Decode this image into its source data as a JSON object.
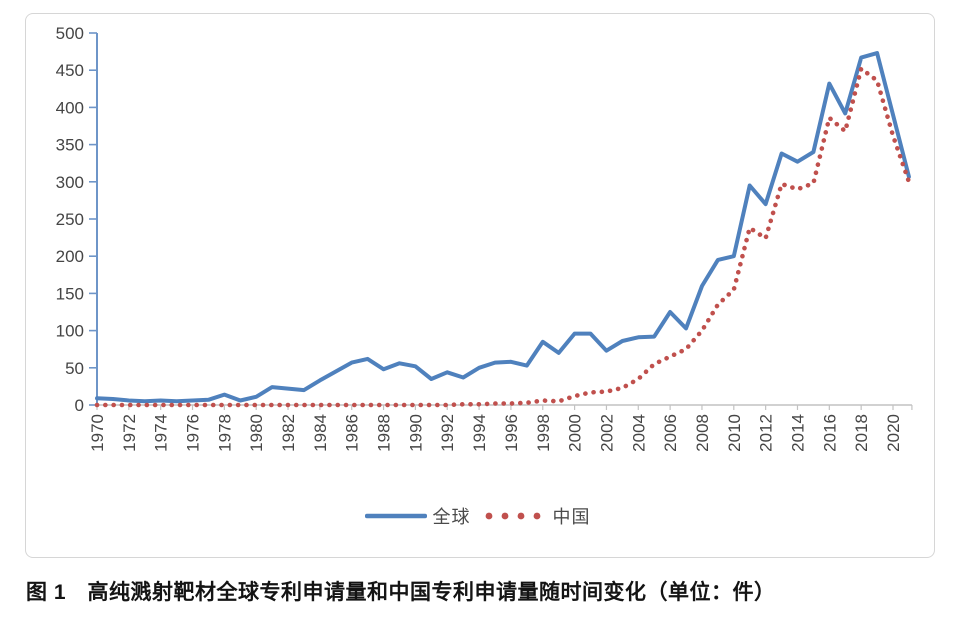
{
  "figure": {
    "caption": "图 1　高纯溅射靶材全球专利申请量和中国专利申请量随时间变化（单位：件）"
  },
  "chart_data": {
    "type": "line",
    "x": [
      1970,
      1971,
      1972,
      1973,
      1974,
      1975,
      1976,
      1977,
      1978,
      1979,
      1980,
      1981,
      1982,
      1983,
      1984,
      1985,
      1986,
      1987,
      1988,
      1989,
      1990,
      1991,
      1992,
      1993,
      1994,
      1995,
      1996,
      1997,
      1998,
      1999,
      2000,
      2001,
      2002,
      2003,
      2004,
      2005,
      2006,
      2007,
      2008,
      2009,
      2010,
      2011,
      2012,
      2013,
      2014,
      2015,
      2016,
      2017,
      2018,
      2019,
      2020,
      2021
    ],
    "series": [
      {
        "name": "全球",
        "style": "solid",
        "color": "#4F81BD",
        "values": [
          9,
          8,
          6,
          5,
          6,
          5,
          6,
          7,
          14,
          6,
          11,
          24,
          22,
          20,
          33,
          45,
          57,
          62,
          48,
          56,
          52,
          35,
          44,
          37,
          50,
          57,
          58,
          53,
          85,
          70,
          96,
          96,
          73,
          86,
          91,
          92,
          125,
          103,
          160,
          195,
          200,
          295,
          270,
          338,
          327,
          340,
          432,
          392,
          467,
          473,
          390,
          307
        ]
      },
      {
        "name": "中国",
        "style": "dotted",
        "color": "#C0504D",
        "values": [
          0,
          0,
          0,
          0,
          0,
          0,
          0,
          0,
          0,
          0,
          0,
          0,
          0,
          0,
          0,
          0,
          0,
          0,
          0,
          0,
          0,
          0,
          0,
          1,
          1,
          2,
          2,
          3,
          6,
          5,
          12,
          17,
          18,
          23,
          35,
          55,
          65,
          75,
          100,
          135,
          155,
          238,
          224,
          297,
          290,
          298,
          386,
          368,
          452,
          436,
          362,
          300
        ]
      }
    ],
    "title": "",
    "xlabel": "",
    "ylabel": "",
    "ylim": [
      0,
      500
    ],
    "yticks": [
      0,
      50,
      100,
      150,
      200,
      250,
      300,
      350,
      400,
      450,
      500
    ],
    "xtick_labels": [
      "1970",
      "1972",
      "1974",
      "1976",
      "1978",
      "1980",
      "1982",
      "1984",
      "1986",
      "1988",
      "1990",
      "1992",
      "1994",
      "1996",
      "1998",
      "2000",
      "2002",
      "2004",
      "2006",
      "2008",
      "2010",
      "2012",
      "2014",
      "2016",
      "2018",
      "2020"
    ],
    "grid": false,
    "legend_position": "bottom",
    "colors": {
      "y_axis": "#6e95c8",
      "x_axis": "#c2c2c2",
      "tick_label": "#454545"
    }
  }
}
